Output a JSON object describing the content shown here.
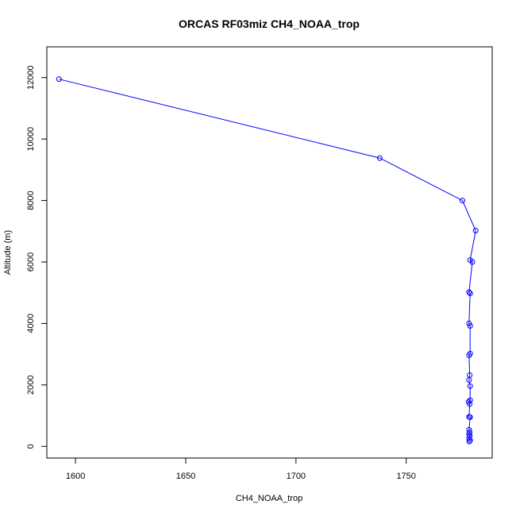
{
  "chart_data": {
    "type": "line",
    "title": "ORCAS RF03miz CH4_NOAA_trop",
    "xlabel": "CH4_NOAA_trop",
    "ylabel": "Altitude (m)",
    "xlim": [
      1587,
      1789
    ],
    "ylim": [
      -380,
      13000
    ],
    "x_ticks": [
      1600,
      1650,
      1700,
      1750
    ],
    "y_ticks": [
      0,
      2000,
      4000,
      6000,
      8000,
      10000,
      12000
    ],
    "grid": false,
    "legend": "none",
    "series": [
      {
        "color": "#0000ff",
        "marker": "open-circle",
        "points": [
          {
            "x": 1592.5,
            "y": 11950
          },
          {
            "x": 1738.0,
            "y": 9380
          },
          {
            "x": 1775.5,
            "y": 8000
          },
          {
            "x": 1781.5,
            "y": 7020
          },
          {
            "x": 1779.0,
            "y": 6060
          },
          {
            "x": 1780.0,
            "y": 6000
          },
          {
            "x": 1778.5,
            "y": 5020
          },
          {
            "x": 1779.0,
            "y": 4980
          },
          {
            "x": 1778.5,
            "y": 4000
          },
          {
            "x": 1779.0,
            "y": 3920
          },
          {
            "x": 1779.0,
            "y": 3020
          },
          {
            "x": 1778.5,
            "y": 2960
          },
          {
            "x": 1778.8,
            "y": 2320
          },
          {
            "x": 1778.5,
            "y": 2160
          },
          {
            "x": 1779.0,
            "y": 1960
          },
          {
            "x": 1779.0,
            "y": 1500
          },
          {
            "x": 1778.3,
            "y": 1450
          },
          {
            "x": 1778.8,
            "y": 1380
          },
          {
            "x": 1778.5,
            "y": 960
          },
          {
            "x": 1779.0,
            "y": 950
          },
          {
            "x": 1778.5,
            "y": 540
          },
          {
            "x": 1778.8,
            "y": 460
          },
          {
            "x": 1778.5,
            "y": 400
          },
          {
            "x": 1778.8,
            "y": 340
          },
          {
            "x": 1778.5,
            "y": 260
          },
          {
            "x": 1779.0,
            "y": 200
          },
          {
            "x": 1778.6,
            "y": 160
          }
        ]
      }
    ]
  }
}
